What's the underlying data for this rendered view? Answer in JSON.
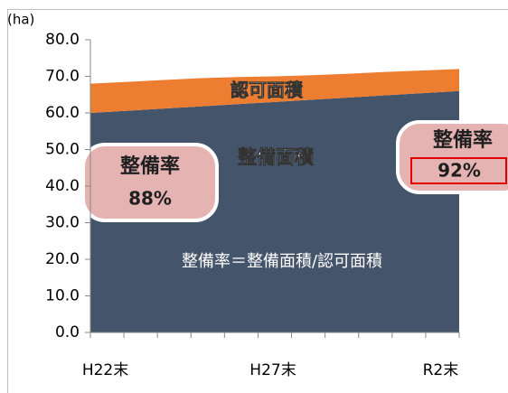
{
  "chart_data": {
    "type": "stacked_area",
    "unit_label": "(ha)",
    "categories": [
      "H22末",
      null,
      null,
      null,
      null,
      "H27末",
      null,
      null,
      null,
      null,
      "R2末"
    ],
    "series": [
      {
        "name": "整備面積",
        "color": "#44546a",
        "values": [
          60.0,
          60.6,
          61.2,
          61.8,
          62.4,
          63.0,
          63.6,
          64.2,
          64.8,
          65.4,
          66.0
        ]
      },
      {
        "name": "認可面積",
        "color": "#ed7d31",
        "values": [
          8.0,
          7.9,
          7.8,
          7.7,
          7.4,
          7.0,
          6.7,
          6.5,
          6.4,
          6.2,
          6.0
        ]
      }
    ],
    "annotations": [
      "整備率",
      "88%",
      "整備率",
      "92%",
      "整備率＝整備面積/認可面積"
    ],
    "ylim": [
      0,
      80
    ],
    "yticks": [
      {
        "value": 0,
        "label": "0.0"
      },
      {
        "value": 10,
        "label": "10.0"
      },
      {
        "value": 20,
        "label": "20.0"
      },
      {
        "value": 30,
        "label": "30.0"
      },
      {
        "value": 40,
        "label": "40.0"
      },
      {
        "value": 50,
        "label": "50.0"
      },
      {
        "value": 60,
        "label": "60.0"
      },
      {
        "value": 70,
        "label": "70.0"
      },
      {
        "value": 80,
        "label": "80.0"
      }
    ],
    "grid": false
  }
}
